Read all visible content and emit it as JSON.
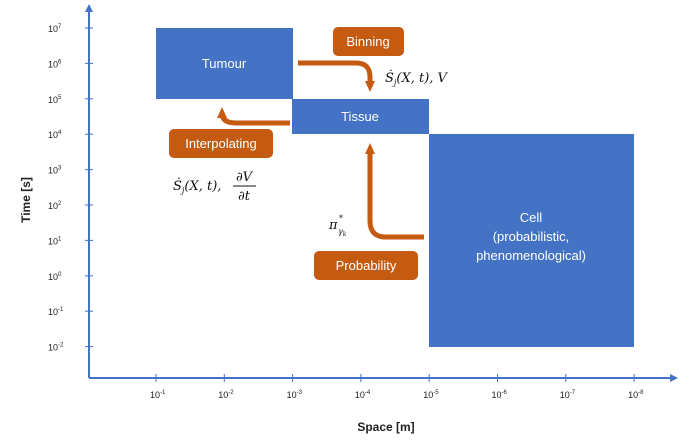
{
  "axes": {
    "y_title": "Time [s]",
    "x_title": "Space [m]",
    "y_ticks": [
      {
        "base": "10",
        "exp": "7"
      },
      {
        "base": "10",
        "exp": "6"
      },
      {
        "base": "10",
        "exp": "5"
      },
      {
        "base": "10",
        "exp": "4"
      },
      {
        "base": "10",
        "exp": "3"
      },
      {
        "base": "10",
        "exp": "2"
      },
      {
        "base": "10",
        "exp": "1"
      },
      {
        "base": "10",
        "exp": "0"
      },
      {
        "base": "10",
        "exp": "-1"
      },
      {
        "base": "10",
        "exp": "-2"
      }
    ],
    "x_ticks": [
      {
        "base": "10",
        "exp": "-1"
      },
      {
        "base": "10",
        "exp": "-2"
      },
      {
        "base": "10",
        "exp": "-3"
      },
      {
        "base": "10",
        "exp": "-4"
      },
      {
        "base": "10",
        "exp": "-5"
      },
      {
        "base": "10",
        "exp": "-6"
      },
      {
        "base": "10",
        "exp": "-7"
      },
      {
        "base": "10",
        "exp": "-8"
      }
    ]
  },
  "boxes": {
    "tumour": "Tumour",
    "tissue": "Tissue",
    "cell_line1": "Cell",
    "cell_line2": "(probabilistic,",
    "cell_line3": "phenomenological)"
  },
  "pills": {
    "binning": "Binning",
    "interpolating": "Interpolating",
    "probability": "Probability"
  },
  "math": {
    "binning_expr_sym": "Ṡ",
    "binning_expr_sub": "j",
    "binning_expr_rest": "(X, t), V",
    "interp_expr_sym": "Ṡ",
    "interp_expr_sub": "j",
    "interp_expr_rest": "(X, t),",
    "interp_frac_num": "∂V",
    "interp_frac_den": "∂t",
    "prob_sym": "π",
    "prob_sup": "*",
    "prob_sub": "γ",
    "prob_subsub": "k"
  },
  "colors": {
    "box_blue": "#4472c4",
    "arrow_orange": "#c55a11",
    "axis_blue": "#4472c4"
  }
}
